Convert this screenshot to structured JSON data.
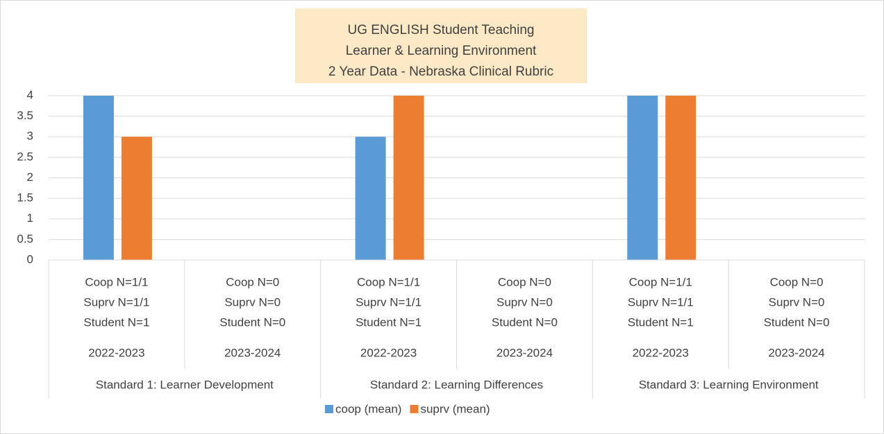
{
  "chart_data": {
    "type": "bar",
    "title": [
      "UG ENGLISH Student Teaching",
      "Learner & Learning Environment",
      "2 Year Data - Nebraska Clinical Rubric"
    ],
    "categories": [
      [
        "Coop N=1/1",
        "Suprv N=1/1",
        "Student N=1"
      ],
      [
        "Coop N=0",
        "Suprv N=0",
        "Student N=0"
      ],
      [
        "Coop N=1/1",
        "Suprv N=1/1",
        "Student N=1"
      ],
      [
        "Coop N=0",
        "Suprv N=0",
        "Student N=0"
      ],
      [
        "Coop N=1/1",
        "Suprv N=1/1",
        "Student N=1"
      ],
      [
        "Coop N=0",
        "Suprv N=0",
        "Student N=0"
      ]
    ],
    "years": [
      "2022-2023",
      "2023-2024",
      "2022-2023",
      "2023-2024",
      "2022-2023",
      "2023-2024"
    ],
    "groups": [
      "Standard 1: Learner Development",
      "Standard 2: Learning Differences",
      "Standard 3: Learning Environment"
    ],
    "series": [
      {
        "name": "coop (mean)",
        "color": "#5b9bd5",
        "values": [
          4,
          null,
          3,
          null,
          4,
          null
        ]
      },
      {
        "name": "suprv (mean)",
        "color": "#ed7d31",
        "values": [
          3,
          null,
          4,
          null,
          4,
          null
        ]
      }
    ],
    "ylim": [
      0,
      4
    ],
    "yticks": [
      0,
      0.5,
      1,
      1.5,
      2,
      2.5,
      3,
      3.5,
      4
    ],
    "grid": true,
    "legend": "bottom"
  }
}
